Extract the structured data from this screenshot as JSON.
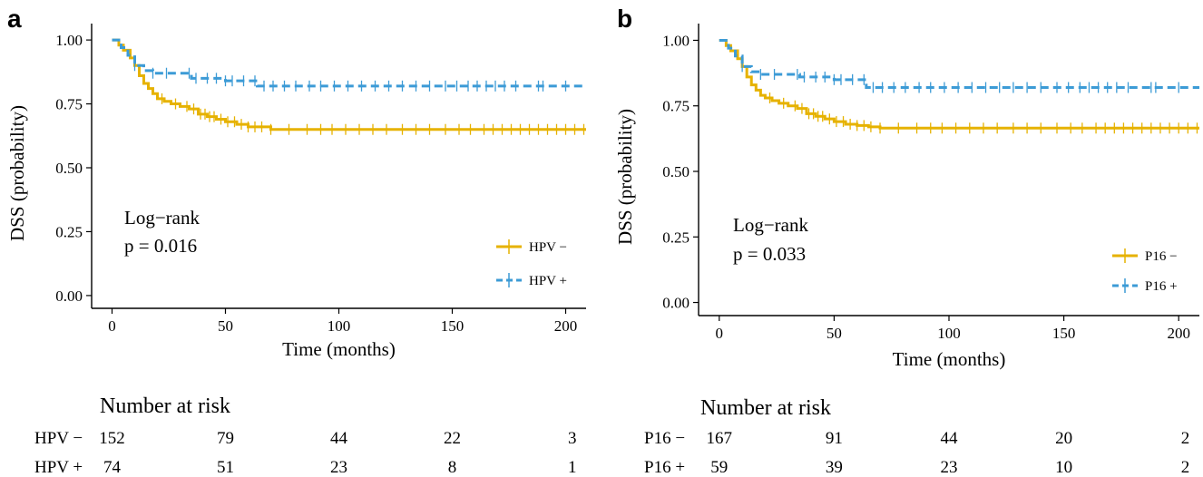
{
  "chart_data": [
    {
      "type": "line",
      "panel_label": "a",
      "xlabel": "Time (months)",
      "ylabel": "DSS (probability)",
      "xlim": [
        -9,
        209
      ],
      "ylim": [
        -0.05,
        1.05
      ],
      "x_ticks": [
        0,
        50,
        100,
        150,
        200
      ],
      "x_tick_labels": [
        "0",
        "50",
        "100",
        "150",
        "200"
      ],
      "y_ticks": [
        0,
        0.25,
        0.5,
        0.75,
        1
      ],
      "y_tick_labels": [
        "0.00",
        "0.25",
        "0.50",
        "0.75",
        "1.00"
      ],
      "grid": false,
      "annotation": [
        "Log−rank",
        "p = 0.016"
      ],
      "legend_position": "bottom-right",
      "series": [
        {
          "name": "HPV −",
          "color": "#E6B200",
          "dash": "solid",
          "x": [
            0,
            3,
            5,
            8,
            10,
            12,
            14,
            16,
            18,
            20,
            23,
            26,
            30,
            34,
            38,
            42,
            46,
            50,
            55,
            60,
            65,
            70,
            209
          ],
          "y": [
            1.0,
            0.98,
            0.96,
            0.93,
            0.9,
            0.86,
            0.83,
            0.81,
            0.79,
            0.77,
            0.76,
            0.75,
            0.74,
            0.73,
            0.71,
            0.7,
            0.69,
            0.68,
            0.67,
            0.66,
            0.66,
            0.65,
            0.65
          ],
          "censor_x": [
            22,
            28,
            33,
            36,
            39,
            41,
            43,
            45,
            48,
            51,
            54,
            57,
            60,
            63,
            66,
            70,
            78,
            86,
            92,
            97,
            103,
            109,
            115,
            121,
            128,
            134,
            140,
            147,
            153,
            158,
            164,
            168,
            172,
            176,
            180,
            184,
            188,
            192,
            196,
            200,
            204,
            208
          ]
        },
        {
          "name": "HPV +",
          "color": "#3C9BD6",
          "dash": "dashed",
          "x": [
            0,
            4,
            7,
            10,
            14,
            18,
            35,
            50,
            64,
            209
          ],
          "y": [
            1.0,
            0.97,
            0.94,
            0.9,
            0.88,
            0.87,
            0.85,
            0.84,
            0.82,
            0.82
          ],
          "censor_x": [
            10,
            18,
            24,
            34,
            37,
            42,
            46,
            50,
            53,
            58,
            63,
            67,
            71,
            76,
            81,
            87,
            92,
            98,
            104,
            110,
            116,
            122,
            128,
            134,
            140,
            147,
            152,
            157,
            161,
            165,
            169,
            173,
            178,
            188,
            190,
            200
          ]
        }
      ],
      "risk_table": {
        "title": "Number at risk",
        "times": [
          0,
          50,
          100,
          150,
          200
        ],
        "rows": [
          {
            "label": "HPV −",
            "counts": [
              "152",
              "79",
              "44",
              "22",
              "3"
            ]
          },
          {
            "label": "HPV +",
            "counts": [
              "74",
              "51",
              "23",
              "8",
              "1"
            ]
          }
        ]
      }
    },
    {
      "type": "line",
      "panel_label": "b",
      "xlabel": "Time (months)",
      "ylabel": "DSS (probability)",
      "xlim": [
        -9,
        209
      ],
      "ylim": [
        -0.05,
        1.05
      ],
      "x_ticks": [
        0,
        50,
        100,
        150,
        200
      ],
      "x_tick_labels": [
        "0",
        "50",
        "100",
        "150",
        "200"
      ],
      "y_ticks": [
        0,
        0.25,
        0.5,
        0.75,
        1
      ],
      "y_tick_labels": [
        "0.00",
        "0.25",
        "0.50",
        "0.75",
        "1.00"
      ],
      "grid": false,
      "annotation": [
        "Log−rank",
        "p = 0.033"
      ],
      "legend_position": "bottom-right",
      "series": [
        {
          "name": "P16 −",
          "color": "#E6B200",
          "dash": "solid",
          "x": [
            0,
            3,
            5,
            8,
            10,
            12,
            14,
            16,
            18,
            20,
            23,
            26,
            30,
            34,
            38,
            42,
            46,
            50,
            55,
            60,
            65,
            70,
            209
          ],
          "y": [
            1.0,
            0.98,
            0.96,
            0.93,
            0.9,
            0.86,
            0.83,
            0.81,
            0.79,
            0.78,
            0.77,
            0.76,
            0.75,
            0.74,
            0.72,
            0.71,
            0.7,
            0.69,
            0.68,
            0.675,
            0.67,
            0.665,
            0.665
          ],
          "censor_x": [
            22,
            28,
            33,
            36,
            39,
            41,
            43,
            45,
            48,
            51,
            54,
            57,
            60,
            63,
            66,
            70,
            78,
            86,
            92,
            97,
            103,
            109,
            115,
            121,
            128,
            134,
            140,
            147,
            153,
            158,
            164,
            168,
            172,
            176,
            180,
            184,
            188,
            192,
            196,
            200,
            204,
            208
          ]
        },
        {
          "name": "P16 +",
          "color": "#3C9BD6",
          "dash": "dashed",
          "x": [
            0,
            4,
            7,
            10,
            14,
            18,
            35,
            50,
            64,
            209
          ],
          "y": [
            1.0,
            0.97,
            0.94,
            0.9,
            0.88,
            0.87,
            0.86,
            0.85,
            0.82,
            0.82
          ],
          "censor_x": [
            10,
            18,
            24,
            34,
            37,
            42,
            46,
            50,
            53,
            58,
            63,
            67,
            71,
            76,
            81,
            87,
            92,
            98,
            104,
            110,
            116,
            122,
            128,
            134,
            140,
            147,
            152,
            157,
            161,
            165,
            169,
            173,
            178,
            188,
            190,
            200
          ]
        }
      ],
      "risk_table": {
        "title": "Number at risk",
        "times": [
          0,
          50,
          100,
          150,
          200
        ],
        "rows": [
          {
            "label": "P16 −",
            "counts": [
              "167",
              "91",
              "44",
              "20",
              "2"
            ]
          },
          {
            "label": "P16 +",
            "counts": [
              "59",
              "39",
              "23",
              "10",
              "2"
            ]
          }
        ]
      }
    }
  ]
}
